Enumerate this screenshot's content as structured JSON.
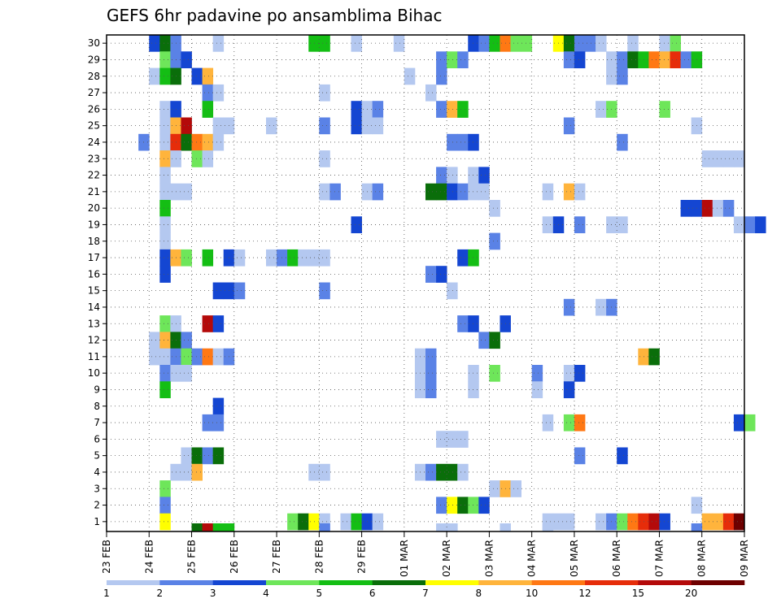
{
  "chart_data": {
    "type": "heatmap",
    "title": "GEFS 6hr padavine po ansamblima Bihac",
    "x_labels": [
      "23 FEB",
      "24 FEB",
      "25 FEB",
      "26 FEB",
      "27 FEB",
      "28 FEB",
      "29 FEB",
      "01 MAR",
      "02 MAR",
      "03 MAR",
      "04 MAR",
      "05 MAR",
      "06 MAR",
      "07 MAR",
      "08 MAR",
      "09 MAR"
    ],
    "y_range": [
      1,
      30
    ],
    "y_labels": [
      "1",
      "2",
      "3",
      "4",
      "5",
      "6",
      "7",
      "8",
      "9",
      "10",
      "11",
      "12",
      "13",
      "14",
      "15",
      "16",
      "17",
      "18",
      "19",
      "20",
      "21",
      "22",
      "23",
      "24",
      "25",
      "26",
      "27",
      "28",
      "29",
      "30"
    ],
    "grid": "dotted",
    "colorbar": {
      "placement": "bottom",
      "levels": [
        1,
        2,
        3,
        4,
        5,
        6,
        7,
        8,
        10,
        12,
        15,
        20
      ],
      "level_labels": [
        "1",
        "2",
        "3",
        "4",
        "5",
        "6",
        "7",
        "8",
        "10",
        "12",
        "15",
        "20"
      ],
      "colors": [
        "#b4c8f0",
        "#5a82e6",
        "#1446d2",
        "#6ee65a",
        "#14be14",
        "#0a6e0a",
        "#ffff00",
        "#ffb43c",
        "#ff7814",
        "#e62d0a",
        "#b40a0a",
        "#6e0000"
      ]
    },
    "cells": [
      [
        30,
        24.0,
        3
      ],
      [
        30,
        24.25,
        6
      ],
      [
        30,
        24.5,
        2
      ],
      [
        30,
        25.5,
        1
      ],
      [
        30,
        27.75,
        5
      ],
      [
        30,
        28.0,
        5
      ],
      [
        30,
        28.75,
        1
      ],
      [
        30,
        29.75,
        1
      ],
      [
        30,
        31.5,
        3
      ],
      [
        30,
        31.75,
        2
      ],
      [
        30,
        32.0,
        5
      ],
      [
        30,
        32.25,
        10
      ],
      [
        30,
        32.5,
        4
      ],
      [
        30,
        32.75,
        4
      ],
      [
        30,
        33.5,
        7
      ],
      [
        30,
        33.75,
        6
      ],
      [
        30,
        34.0,
        2
      ],
      [
        30,
        34.25,
        2
      ],
      [
        30,
        34.5,
        1
      ],
      [
        30,
        35.25,
        1
      ],
      [
        30,
        36.0,
        1
      ],
      [
        30,
        36.25,
        4
      ],
      [
        29,
        24.25,
        4
      ],
      [
        29,
        24.5,
        2
      ],
      [
        29,
        24.75,
        3
      ],
      [
        29,
        30.75,
        2
      ],
      [
        29,
        31.0,
        4
      ],
      [
        29,
        31.25,
        2
      ],
      [
        29,
        33.75,
        2
      ],
      [
        29,
        34.0,
        3
      ],
      [
        29,
        34.75,
        1
      ],
      [
        29,
        35.0,
        2
      ],
      [
        29,
        35.25,
        6
      ],
      [
        29,
        35.5,
        5
      ],
      [
        29,
        35.75,
        10
      ],
      [
        29,
        36.0,
        8
      ],
      [
        29,
        36.25,
        12
      ],
      [
        29,
        36.5,
        2
      ],
      [
        29,
        36.75,
        5
      ],
      [
        28,
        24.0,
        1
      ],
      [
        28,
        24.25,
        5
      ],
      [
        28,
        24.5,
        6
      ],
      [
        28,
        25.0,
        3
      ],
      [
        28,
        25.25,
        8
      ],
      [
        28,
        30.0,
        1
      ],
      [
        28,
        30.75,
        2
      ],
      [
        28,
        34.75,
        1
      ],
      [
        28,
        35.0,
        2
      ],
      [
        27,
        25.25,
        2
      ],
      [
        27,
        25.5,
        1
      ],
      [
        27,
        28.0,
        1
      ],
      [
        27,
        30.5,
        1
      ],
      [
        26,
        24.25,
        1
      ],
      [
        26,
        24.5,
        3
      ],
      [
        26,
        25.25,
        5
      ],
      [
        26,
        28.75,
        3
      ],
      [
        26,
        29.0,
        1
      ],
      [
        26,
        29.25,
        2
      ],
      [
        26,
        30.75,
        2
      ],
      [
        26,
        31.0,
        8
      ],
      [
        26,
        31.25,
        5
      ],
      [
        26,
        34.5,
        1
      ],
      [
        26,
        34.75,
        4
      ],
      [
        26,
        36.0,
        4
      ],
      [
        25,
        24.25,
        1
      ],
      [
        25,
        24.5,
        8
      ],
      [
        25,
        24.75,
        15
      ],
      [
        25,
        25.5,
        1
      ],
      [
        25,
        25.75,
        1
      ],
      [
        25,
        26.75,
        1
      ],
      [
        25,
        28.0,
        2
      ],
      [
        25,
        28.75,
        3
      ],
      [
        25,
        29.0,
        1
      ],
      [
        25,
        29.25,
        1
      ],
      [
        25,
        33.75,
        2
      ],
      [
        25,
        36.75,
        1
      ],
      [
        24,
        23.75,
        2
      ],
      [
        24,
        24.25,
        1
      ],
      [
        24,
        24.5,
        12
      ],
      [
        24,
        24.75,
        6
      ],
      [
        24,
        25.0,
        10
      ],
      [
        24,
        25.25,
        8
      ],
      [
        24,
        25.5,
        1
      ],
      [
        24,
        31.0,
        2
      ],
      [
        24,
        31.25,
        2
      ],
      [
        24,
        31.5,
        3
      ],
      [
        24,
        35.0,
        2
      ],
      [
        23,
        24.25,
        8
      ],
      [
        23,
        24.5,
        1
      ],
      [
        23,
        25.0,
        4
      ],
      [
        23,
        25.25,
        1
      ],
      [
        23,
        28.0,
        1
      ],
      [
        23,
        37.0,
        1
      ],
      [
        23,
        37.25,
        1
      ],
      [
        23,
        37.5,
        1
      ],
      [
        23,
        37.75,
        1
      ],
      [
        22,
        24.25,
        1
      ],
      [
        22,
        30.75,
        2
      ],
      [
        22,
        31.0,
        1
      ],
      [
        22,
        31.5,
        1
      ],
      [
        22,
        31.75,
        3
      ],
      [
        21,
        24.25,
        1
      ],
      [
        21,
        24.5,
        1
      ],
      [
        21,
        24.75,
        1
      ],
      [
        21,
        28.0,
        1
      ],
      [
        21,
        28.25,
        2
      ],
      [
        21,
        29.0,
        1
      ],
      [
        21,
        29.25,
        2
      ],
      [
        21,
        30.5,
        6
      ],
      [
        21,
        30.75,
        6
      ],
      [
        21,
        31.0,
        3
      ],
      [
        21,
        31.25,
        2
      ],
      [
        21,
        31.5,
        1
      ],
      [
        21,
        31.75,
        1
      ],
      [
        21,
        33.25,
        1
      ],
      [
        21,
        33.75,
        8
      ],
      [
        21,
        34.0,
        1
      ],
      [
        20,
        24.25,
        5
      ],
      [
        20,
        32.0,
        1
      ],
      [
        20,
        36.5,
        3
      ],
      [
        20,
        36.75,
        3
      ],
      [
        20,
        37.0,
        15
      ],
      [
        20,
        37.25,
        1
      ],
      [
        20,
        37.5,
        2
      ],
      [
        19,
        24.25,
        1
      ],
      [
        19,
        28.75,
        3
      ],
      [
        19,
        33.25,
        1
      ],
      [
        19,
        33.5,
        3
      ],
      [
        19,
        34.0,
        2
      ],
      [
        19,
        34.75,
        1
      ],
      [
        19,
        35.0,
        1
      ],
      [
        19,
        37.75,
        1
      ],
      [
        19,
        38.0,
        2
      ],
      [
        19,
        38.25,
        3
      ],
      [
        18,
        24.25,
        1
      ],
      [
        18,
        32.0,
        2
      ],
      [
        17,
        24.25,
        3
      ],
      [
        17,
        24.5,
        8
      ],
      [
        17,
        24.75,
        4
      ],
      [
        17,
        25.25,
        5
      ],
      [
        17,
        25.75,
        3
      ],
      [
        17,
        26.0,
        1
      ],
      [
        17,
        26.75,
        1
      ],
      [
        17,
        27.0,
        2
      ],
      [
        17,
        27.25,
        5
      ],
      [
        17,
        27.5,
        1
      ],
      [
        17,
        27.75,
        1
      ],
      [
        17,
        28.0,
        1
      ],
      [
        17,
        31.25,
        3
      ],
      [
        17,
        31.5,
        5
      ],
      [
        16,
        24.25,
        3
      ],
      [
        16,
        30.5,
        2
      ],
      [
        16,
        30.75,
        3
      ],
      [
        15,
        25.5,
        3
      ],
      [
        15,
        25.75,
        3
      ],
      [
        15,
        26.0,
        2
      ],
      [
        15,
        28.0,
        2
      ],
      [
        15,
        31.0,
        1
      ],
      [
        14,
        33.75,
        2
      ],
      [
        14,
        34.5,
        1
      ],
      [
        14,
        34.75,
        2
      ],
      [
        13,
        24.25,
        4
      ],
      [
        13,
        24.5,
        1
      ],
      [
        13,
        25.25,
        15
      ],
      [
        13,
        25.5,
        3
      ],
      [
        13,
        31.25,
        2
      ],
      [
        13,
        31.5,
        3
      ],
      [
        13,
        32.25,
        3
      ],
      [
        12,
        24.0,
        1
      ],
      [
        12,
        24.25,
        8
      ],
      [
        12,
        24.5,
        6
      ],
      [
        12,
        24.75,
        2
      ],
      [
        12,
        31.75,
        2
      ],
      [
        12,
        32.0,
        6
      ],
      [
        11,
        24.0,
        1
      ],
      [
        11,
        24.25,
        1
      ],
      [
        11,
        24.5,
        2
      ],
      [
        11,
        24.75,
        4
      ],
      [
        11,
        25.0,
        2
      ],
      [
        11,
        25.25,
        10
      ],
      [
        11,
        25.5,
        1
      ],
      [
        11,
        25.75,
        2
      ],
      [
        11,
        30.25,
        1
      ],
      [
        11,
        30.5,
        2
      ],
      [
        11,
        35.5,
        8
      ],
      [
        11,
        35.75,
        6
      ],
      [
        10,
        24.25,
        2
      ],
      [
        10,
        24.5,
        1
      ],
      [
        10,
        24.75,
        1
      ],
      [
        10,
        30.25,
        1
      ],
      [
        10,
        30.5,
        2
      ],
      [
        10,
        31.5,
        1
      ],
      [
        10,
        32.0,
        4
      ],
      [
        10,
        33.0,
        2
      ],
      [
        10,
        33.75,
        1
      ],
      [
        10,
        34.0,
        3
      ],
      [
        9,
        24.25,
        5
      ],
      [
        9,
        30.25,
        1
      ],
      [
        9,
        30.5,
        2
      ],
      [
        9,
        31.5,
        1
      ],
      [
        9,
        33.0,
        1
      ],
      [
        9,
        33.75,
        3
      ],
      [
        8,
        25.5,
        3
      ],
      [
        7,
        25.25,
        2
      ],
      [
        7,
        25.5,
        2
      ],
      [
        7,
        33.25,
        1
      ],
      [
        7,
        33.75,
        4
      ],
      [
        7,
        34.0,
        10
      ],
      [
        7,
        37.75,
        3
      ],
      [
        7,
        38.0,
        4
      ],
      [
        6,
        30.75,
        1
      ],
      [
        6,
        31.0,
        1
      ],
      [
        6,
        31.25,
        1
      ],
      [
        5,
        24.75,
        1
      ],
      [
        5,
        25.0,
        6
      ],
      [
        5,
        25.25,
        2
      ],
      [
        5,
        25.5,
        6
      ],
      [
        5,
        34.0,
        2
      ],
      [
        5,
        35.0,
        3
      ],
      [
        4,
        24.5,
        1
      ],
      [
        4,
        24.75,
        1
      ],
      [
        4,
        25.0,
        8
      ],
      [
        4,
        27.75,
        1
      ],
      [
        4,
        28.0,
        1
      ],
      [
        4,
        30.25,
        1
      ],
      [
        4,
        30.5,
        2
      ],
      [
        4,
        30.75,
        6
      ],
      [
        4,
        31.0,
        6
      ],
      [
        4,
        31.25,
        1
      ],
      [
        3,
        24.25,
        4
      ],
      [
        3,
        32.0,
        1
      ],
      [
        3,
        32.25,
        8
      ],
      [
        3,
        32.5,
        1
      ],
      [
        2,
        24.25,
        2
      ],
      [
        2,
        30.75,
        2
      ],
      [
        2,
        31.0,
        7
      ],
      [
        2,
        31.25,
        6
      ],
      [
        2,
        31.5,
        4
      ],
      [
        2,
        31.75,
        3
      ],
      [
        2,
        36.75,
        1
      ],
      [
        1,
        24.25,
        7
      ],
      [
        1,
        27.25,
        4
      ],
      [
        1,
        27.5,
        6
      ],
      [
        1,
        27.75,
        7
      ],
      [
        1,
        28.0,
        1
      ],
      [
        1,
        28.5,
        1
      ],
      [
        1,
        28.75,
        5
      ],
      [
        1,
        29.0,
        3
      ],
      [
        1,
        29.25,
        1
      ],
      [
        1,
        33.25,
        1
      ],
      [
        1,
        33.5,
        1
      ],
      [
        1,
        33.75,
        1
      ],
      [
        1,
        34.5,
        1
      ],
      [
        1,
        34.75,
        2
      ],
      [
        1,
        35.0,
        4
      ],
      [
        1,
        35.25,
        10
      ],
      [
        1,
        35.5,
        12
      ],
      [
        1,
        35.75,
        15
      ],
      [
        1,
        36.0,
        3
      ],
      [
        1,
        37.0,
        8
      ],
      [
        1,
        37.25,
        8
      ],
      [
        1,
        37.5,
        12
      ],
      [
        1,
        37.75,
        20
      ]
    ],
    "control_cells": [
      [
        25.0,
        6
      ],
      [
        25.25,
        15
      ],
      [
        25.5,
        5
      ],
      [
        25.75,
        5
      ],
      [
        28.0,
        2
      ],
      [
        30.75,
        1
      ],
      [
        31.0,
        1
      ],
      [
        32.25,
        1
      ],
      [
        33.25,
        1
      ],
      [
        36.75,
        2
      ]
    ]
  }
}
